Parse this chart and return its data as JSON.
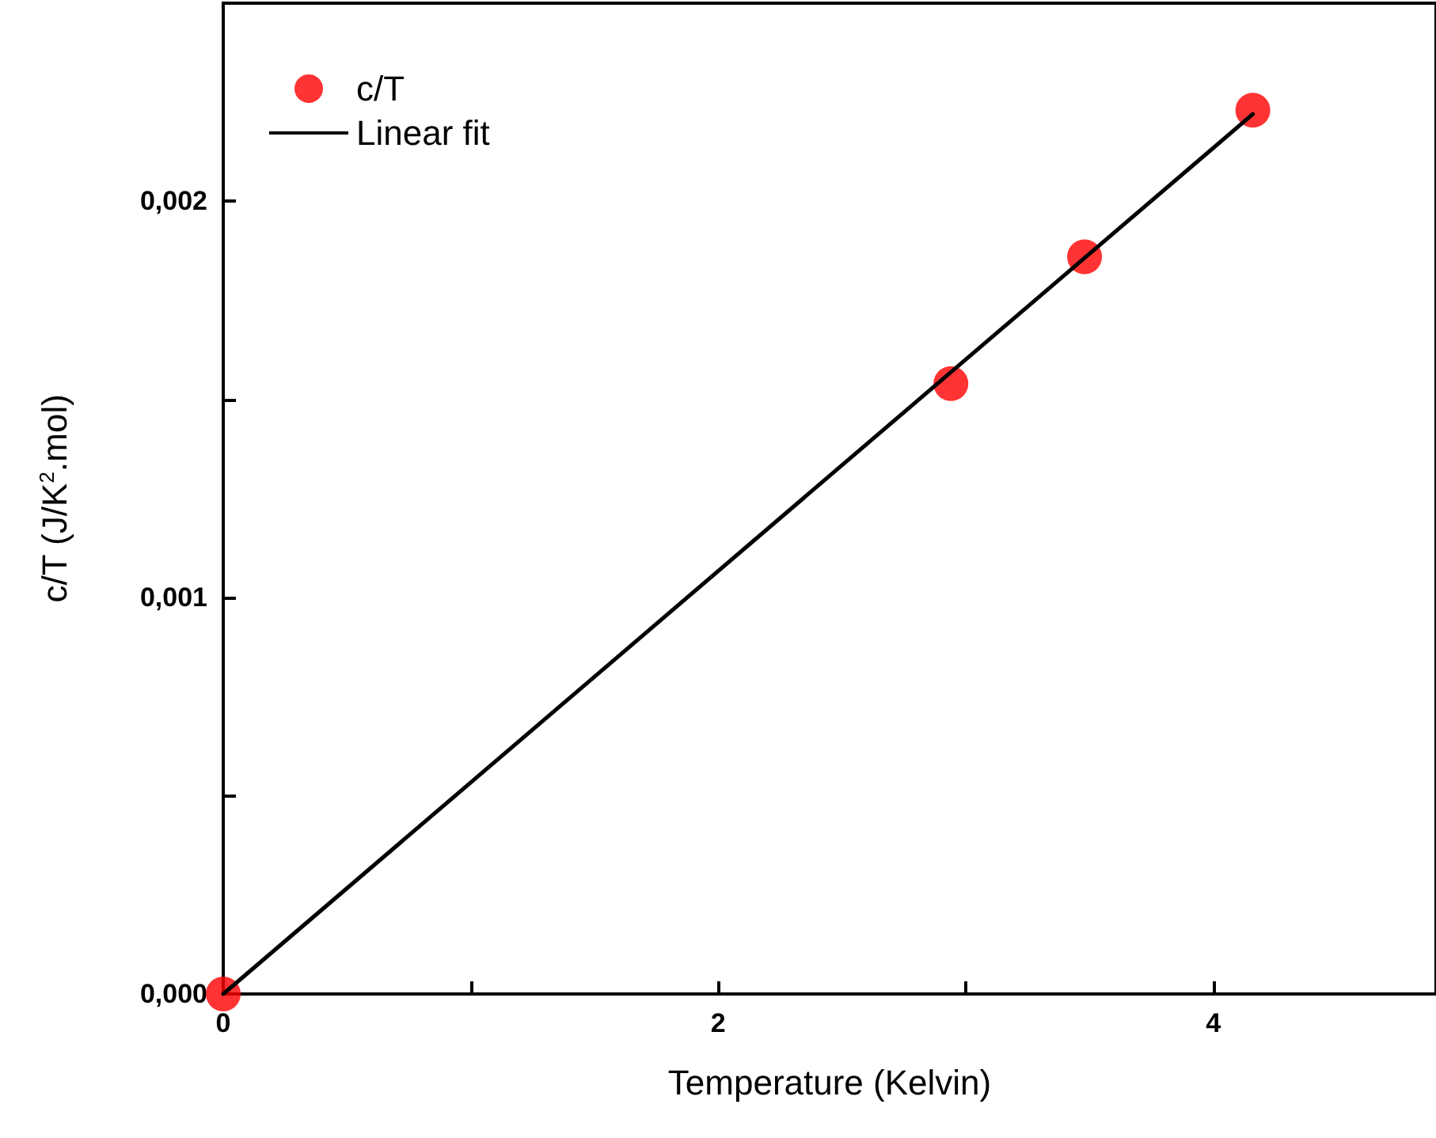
{
  "chart_data": {
    "type": "scatter",
    "xlabel": "Temperature (Kelvin)",
    "ylabel": "c/T (J/K$^{2}$.mol)",
    "xlim": [
      0,
      4.9
    ],
    "ylim": [
      0,
      0.0025
    ],
    "xticks": [
      0,
      {
        "value": 1,
        "label": null
      },
      2,
      {
        "value": 3,
        "label": null
      },
      4
    ],
    "yticks": [
      {
        "value": 0,
        "label": "0,000"
      },
      {
        "value": 0.0005,
        "label": null
      },
      {
        "value": 0.001,
        "label": "0,001"
      },
      {
        "value": 0.0015,
        "label": null
      },
      {
        "value": 0.002,
        "label": "0,002"
      }
    ],
    "grid": false,
    "legend": "top left",
    "series": [
      {
        "name": "c/T",
        "type": "scatter",
        "color": "#ff0000",
        "marker": "circle",
        "x": [
          0,
          2.94,
          3.48,
          4.16
        ],
        "values": [
          0,
          0.00154,
          0.00186,
          0.00223
        ]
      },
      {
        "name": "Linear fit",
        "type": "line",
        "color": "#000000",
        "line_style": "solid",
        "x": [
          0,
          4.16
        ],
        "values": [
          0,
          0.00222
        ]
      }
    ]
  }
}
